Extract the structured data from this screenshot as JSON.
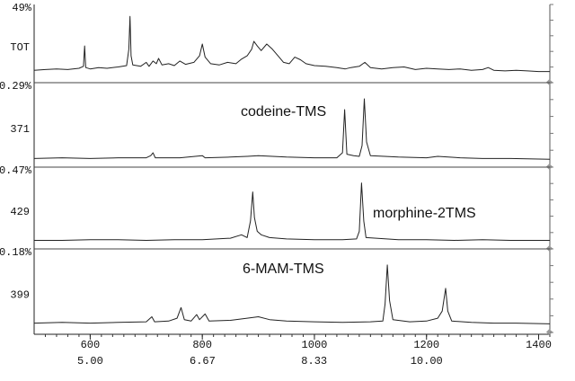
{
  "chart_data": {
    "type": "line",
    "xlim": [
      500,
      1420
    ],
    "xticks": [
      600,
      800,
      1000,
      1200,
      1400
    ],
    "x2lim": [
      4.1667,
      11.8333
    ],
    "x2ticks": [
      {
        "value": 5,
        "label": "5.00"
      },
      {
        "value": 6.67,
        "label": "6.67"
      },
      {
        "value": 8.33,
        "label": "8.33"
      },
      {
        "value": 10,
        "label": "10.00"
      }
    ],
    "panels": [
      {
        "scale_label": "49%",
        "y_label": "TOT",
        "ylim": [
          0,
          100
        ],
        "series": [
          {
            "color": "#222",
            "x": [
              500,
              520,
              540,
              560,
              580,
              588,
              590,
              592,
              600,
              615,
              630,
              650,
              665,
              669,
              671,
              673,
              676,
              690,
              700,
              705,
              712,
              718,
              722,
              728,
              740,
              750,
              760,
              770,
              785,
              795,
              800,
              805,
              815,
              830,
              845,
              860,
              870,
              880,
              888,
              892,
              898,
              905,
              915,
              925,
              935,
              945,
              955,
              965,
              975,
              985,
              1000,
              1020,
              1040,
              1055,
              1065,
              1080,
              1090,
              1100,
              1120,
              1140,
              1160,
              1180,
              1200,
              1220,
              1240,
              1260,
              1280,
              1300,
              1310,
              1320,
              1340,
              1360,
              1380,
              1400,
              1420
            ],
            "values": [
              8,
              9,
              10,
              9,
              11,
              14,
              45,
              12,
              10,
              12,
              11,
              13,
              15,
              40,
              90,
              30,
              16,
              14,
              20,
              14,
              22,
              18,
              26,
              16,
              18,
              15,
              22,
              17,
              20,
              30,
              48,
              28,
              18,
              16,
              20,
              18,
              25,
              30,
              40,
              52,
              45,
              38,
              48,
              40,
              30,
              20,
              18,
              28,
              24,
              18,
              15,
              14,
              12,
              10,
              12,
              14,
              20,
              12,
              10,
              12,
              13,
              9,
              11,
              10,
              9,
              10,
              8,
              9,
              12,
              8,
              7,
              8,
              7,
              6,
              6
            ]
          }
        ]
      },
      {
        "scale_label": "0.29%",
        "y_label": "371",
        "ylim": [
          0,
          100
        ],
        "series": [
          {
            "name": "codeine-TMS",
            "color": "#222",
            "x": [
              500,
              550,
              600,
              650,
              700,
              708,
              712,
              716,
              760,
              800,
              805,
              850,
              880,
              900,
              950,
              1000,
              1040,
              1050,
              1054,
              1058,
              1070,
              1080,
              1085,
              1089,
              1093,
              1100,
              1150,
              1200,
              1220,
              1260,
              1300,
              1350,
              1420
            ],
            "values": [
              2,
              3,
              2,
              3,
              3,
              6,
              10,
              3,
              3,
              6,
              3,
              4,
              5,
              6,
              4,
              3,
              3,
              10,
              70,
              8,
              6,
              5,
              20,
              85,
              25,
              6,
              4,
              3,
              5,
              3,
              2,
              2,
              1
            ]
          }
        ]
      },
      {
        "scale_label": "0.47%",
        "y_label": "429",
        "ylim": [
          0,
          100
        ],
        "series": [
          {
            "name": "morphine-2TMS",
            "color": "#222",
            "x": [
              500,
              550,
              600,
              650,
              700,
              750,
              800,
              850,
              870,
              880,
              886,
              890,
              893,
              898,
              905,
              920,
              950,
              1000,
              1050,
              1075,
              1080,
              1084,
              1088,
              1092,
              1150,
              1200,
              1250,
              1300,
              1350,
              1420
            ],
            "values": [
              2,
              2,
              3,
              3,
              2,
              3,
              3,
              5,
              10,
              6,
              30,
              72,
              35,
              15,
              10,
              6,
              4,
              3,
              3,
              4,
              15,
              85,
              30,
              6,
              3,
              3,
              2,
              3,
              2,
              2
            ]
          }
        ]
      },
      {
        "scale_label": "0.18%",
        "y_label": "399",
        "ylim": [
          0,
          100
        ],
        "series": [
          {
            "name": "6-MAM-TMS",
            "color": "#222",
            "x": [
              500,
              550,
              600,
              650,
              700,
              710,
              715,
              740,
              755,
              762,
              768,
              780,
              790,
              795,
              805,
              812,
              850,
              880,
              900,
              920,
              950,
              1000,
              1050,
              1100,
              1122,
              1126,
              1130,
              1134,
              1140,
              1170,
              1200,
              1220,
              1228,
              1234,
              1238,
              1245,
              1280,
              1320,
              1360,
              1420
            ],
            "values": [
              3,
              4,
              3,
              4,
              5,
              12,
              5,
              6,
              10,
              25,
              8,
              6,
              15,
              8,
              16,
              6,
              7,
              10,
              12,
              8,
              6,
              5,
              4,
              5,
              6,
              30,
              85,
              35,
              8,
              5,
              6,
              10,
              20,
              52,
              20,
              6,
              4,
              3,
              3,
              2
            ]
          }
        ]
      }
    ]
  }
}
